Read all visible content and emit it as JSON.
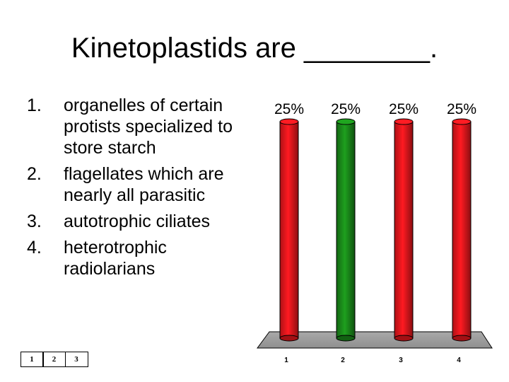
{
  "title": "Kinetoplastids are ________.",
  "answers": [
    {
      "number": "1.",
      "text": "organelles of certain protists specialized to store starch"
    },
    {
      "number": "2.",
      "text": "flagellates which are nearly all parasitic"
    },
    {
      "number": "3.",
      "text": "autotrophic ciliates"
    },
    {
      "number": "4.",
      "text": "heterotrophic radiolarians"
    }
  ],
  "counter": [
    "1",
    "2",
    "3"
  ],
  "chart_data": {
    "type": "bar",
    "categories": [
      "1",
      "2",
      "3",
      "4"
    ],
    "values": [
      25,
      25,
      25,
      25
    ],
    "value_labels": [
      "25%",
      "25%",
      "25%",
      "25%"
    ],
    "colors": [
      "#e8171d",
      "#1a8a1a",
      "#e8171d",
      "#e8171d"
    ],
    "ylim": [
      0,
      25
    ],
    "title": "",
    "xlabel": "",
    "ylabel": "",
    "grid": false
  }
}
